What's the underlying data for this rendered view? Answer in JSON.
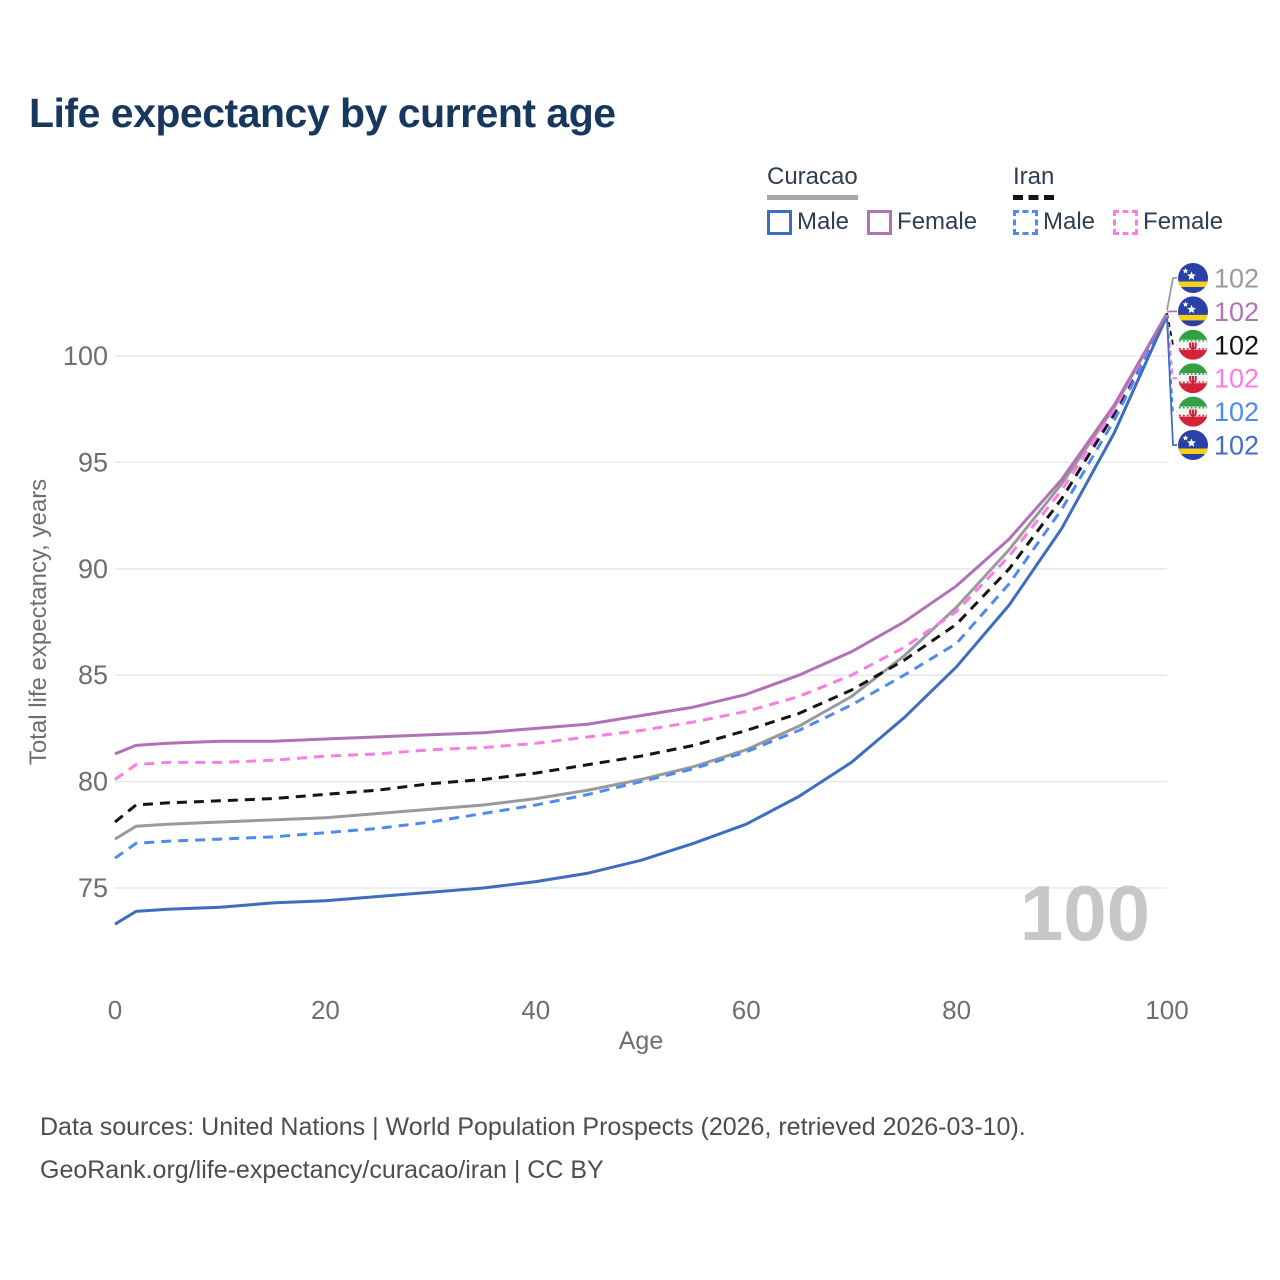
{
  "title": "Life expectancy by current age",
  "legend": {
    "groups": [
      {
        "name": "Curacao",
        "line_style": "solid",
        "underline_color": "#a6a6a6",
        "items": [
          {
            "label": "Male",
            "color": "#3e6dc0",
            "dashed": false
          },
          {
            "label": "Female",
            "color": "#b172b5",
            "dashed": false
          }
        ]
      },
      {
        "name": "Iran",
        "line_style": "dashed",
        "underline_color": "#141414",
        "items": [
          {
            "label": "Male",
            "color": "#4f8af2",
            "dashed": true
          },
          {
            "label": "Female",
            "color": "#fb7ce4",
            "dashed": true
          }
        ]
      }
    ]
  },
  "chart_data": {
    "type": "line",
    "title": "Life expectancy by current age",
    "xlabel": "Age",
    "ylabel": "Total life expectancy, years",
    "x_ticks": [
      0,
      20,
      40,
      60,
      80,
      100
    ],
    "y_ticks": [
      75,
      80,
      85,
      90,
      95,
      100
    ],
    "xlim": [
      0,
      100
    ],
    "ylim": [
      73,
      103
    ],
    "grid": "horizontal",
    "legend_position": "top-right",
    "watermark": "100",
    "x": [
      0,
      2,
      5,
      10,
      15,
      20,
      25,
      30,
      35,
      40,
      45,
      50,
      55,
      60,
      65,
      70,
      75,
      80,
      85,
      90,
      95,
      100
    ],
    "series": [
      {
        "name": "Curacao Both sexes",
        "country": "Curacao",
        "sex": "Both sexes",
        "color": "#9a9a9a",
        "dashed": false,
        "values": [
          77.3,
          77.9,
          78.0,
          78.1,
          78.2,
          78.3,
          78.5,
          78.7,
          78.9,
          79.2,
          79.6,
          80.1,
          80.7,
          81.5,
          82.6,
          84.0,
          85.9,
          88.2,
          90.9,
          94.0,
          97.6,
          102.0
        ]
      },
      {
        "name": "Iran Both sexes",
        "country": "Iran",
        "sex": "Both sexes",
        "color": "#141414",
        "dashed": true,
        "values": [
          78.1,
          78.9,
          79.0,
          79.1,
          79.2,
          79.4,
          79.6,
          79.9,
          80.1,
          80.4,
          80.8,
          81.2,
          81.7,
          82.4,
          83.2,
          84.3,
          85.7,
          87.4,
          90.0,
          93.3,
          97.3,
          102.0
        ]
      },
      {
        "name": "Iran Female",
        "country": "Iran",
        "sex": "Female",
        "color": "#fb7ce4",
        "dashed": true,
        "values": [
          80.1,
          80.8,
          80.9,
          80.9,
          81.0,
          81.2,
          81.3,
          81.5,
          81.6,
          81.8,
          82.1,
          82.4,
          82.8,
          83.3,
          84.0,
          85.0,
          86.3,
          88.0,
          90.6,
          93.7,
          97.5,
          102.0
        ]
      },
      {
        "name": "Iran Male",
        "country": "Iran",
        "sex": "Male",
        "color": "#4f8af2",
        "dashed": true,
        "values": [
          76.4,
          77.1,
          77.2,
          77.3,
          77.4,
          77.6,
          77.8,
          78.1,
          78.5,
          78.9,
          79.4,
          80.0,
          80.6,
          81.4,
          82.4,
          83.6,
          85.0,
          86.5,
          89.3,
          92.8,
          97.0,
          101.9
        ]
      },
      {
        "name": "Curacao Male",
        "country": "Curacao",
        "sex": "Male",
        "color": "#3e6dc0",
        "dashed": false,
        "values": [
          73.3,
          73.9,
          74.0,
          74.1,
          74.3,
          74.4,
          74.6,
          74.8,
          75.0,
          75.3,
          75.7,
          76.3,
          77.1,
          78.0,
          79.3,
          80.9,
          83.0,
          85.4,
          88.3,
          91.9,
          96.4,
          101.9
        ]
      },
      {
        "name": "Curacao Female",
        "country": "Curacao",
        "sex": "Female",
        "color": "#b172b5",
        "dashed": false,
        "values": [
          81.3,
          81.7,
          81.8,
          81.9,
          81.9,
          82.0,
          82.1,
          82.2,
          82.3,
          82.5,
          82.7,
          83.1,
          83.5,
          84.1,
          85.0,
          86.1,
          87.5,
          89.2,
          91.4,
          94.2,
          97.7,
          102.0
        ]
      }
    ],
    "end_labels": [
      {
        "series": "Curacao Both sexes",
        "flag": "curacao",
        "value": "102",
        "color": "#9a9a9a",
        "dashed": false
      },
      {
        "series": "Curacao Female",
        "flag": "curacao",
        "value": "102",
        "color": "#b273b9",
        "dashed": false
      },
      {
        "series": "Iran Both sexes",
        "flag": "iran",
        "value": "102",
        "color": "#141414",
        "dashed": true
      },
      {
        "series": "Iran Female",
        "flag": "iran",
        "value": "102",
        "color": "#fb7be0",
        "dashed": true
      },
      {
        "series": "Iran Male",
        "flag": "iran",
        "value": "102",
        "color": "#4d8af5",
        "dashed": true
      },
      {
        "series": "Curacao Male",
        "flag": "curacao",
        "value": "102",
        "color": "#3f6ec2",
        "dashed": false
      }
    ]
  },
  "footer": {
    "line1": "Data sources: United Nations | World Population Prospects (2026, retrieved 2026-03-10).",
    "line2": "GeoRank.org/life-expectancy/curacao/iran | CC BY"
  }
}
